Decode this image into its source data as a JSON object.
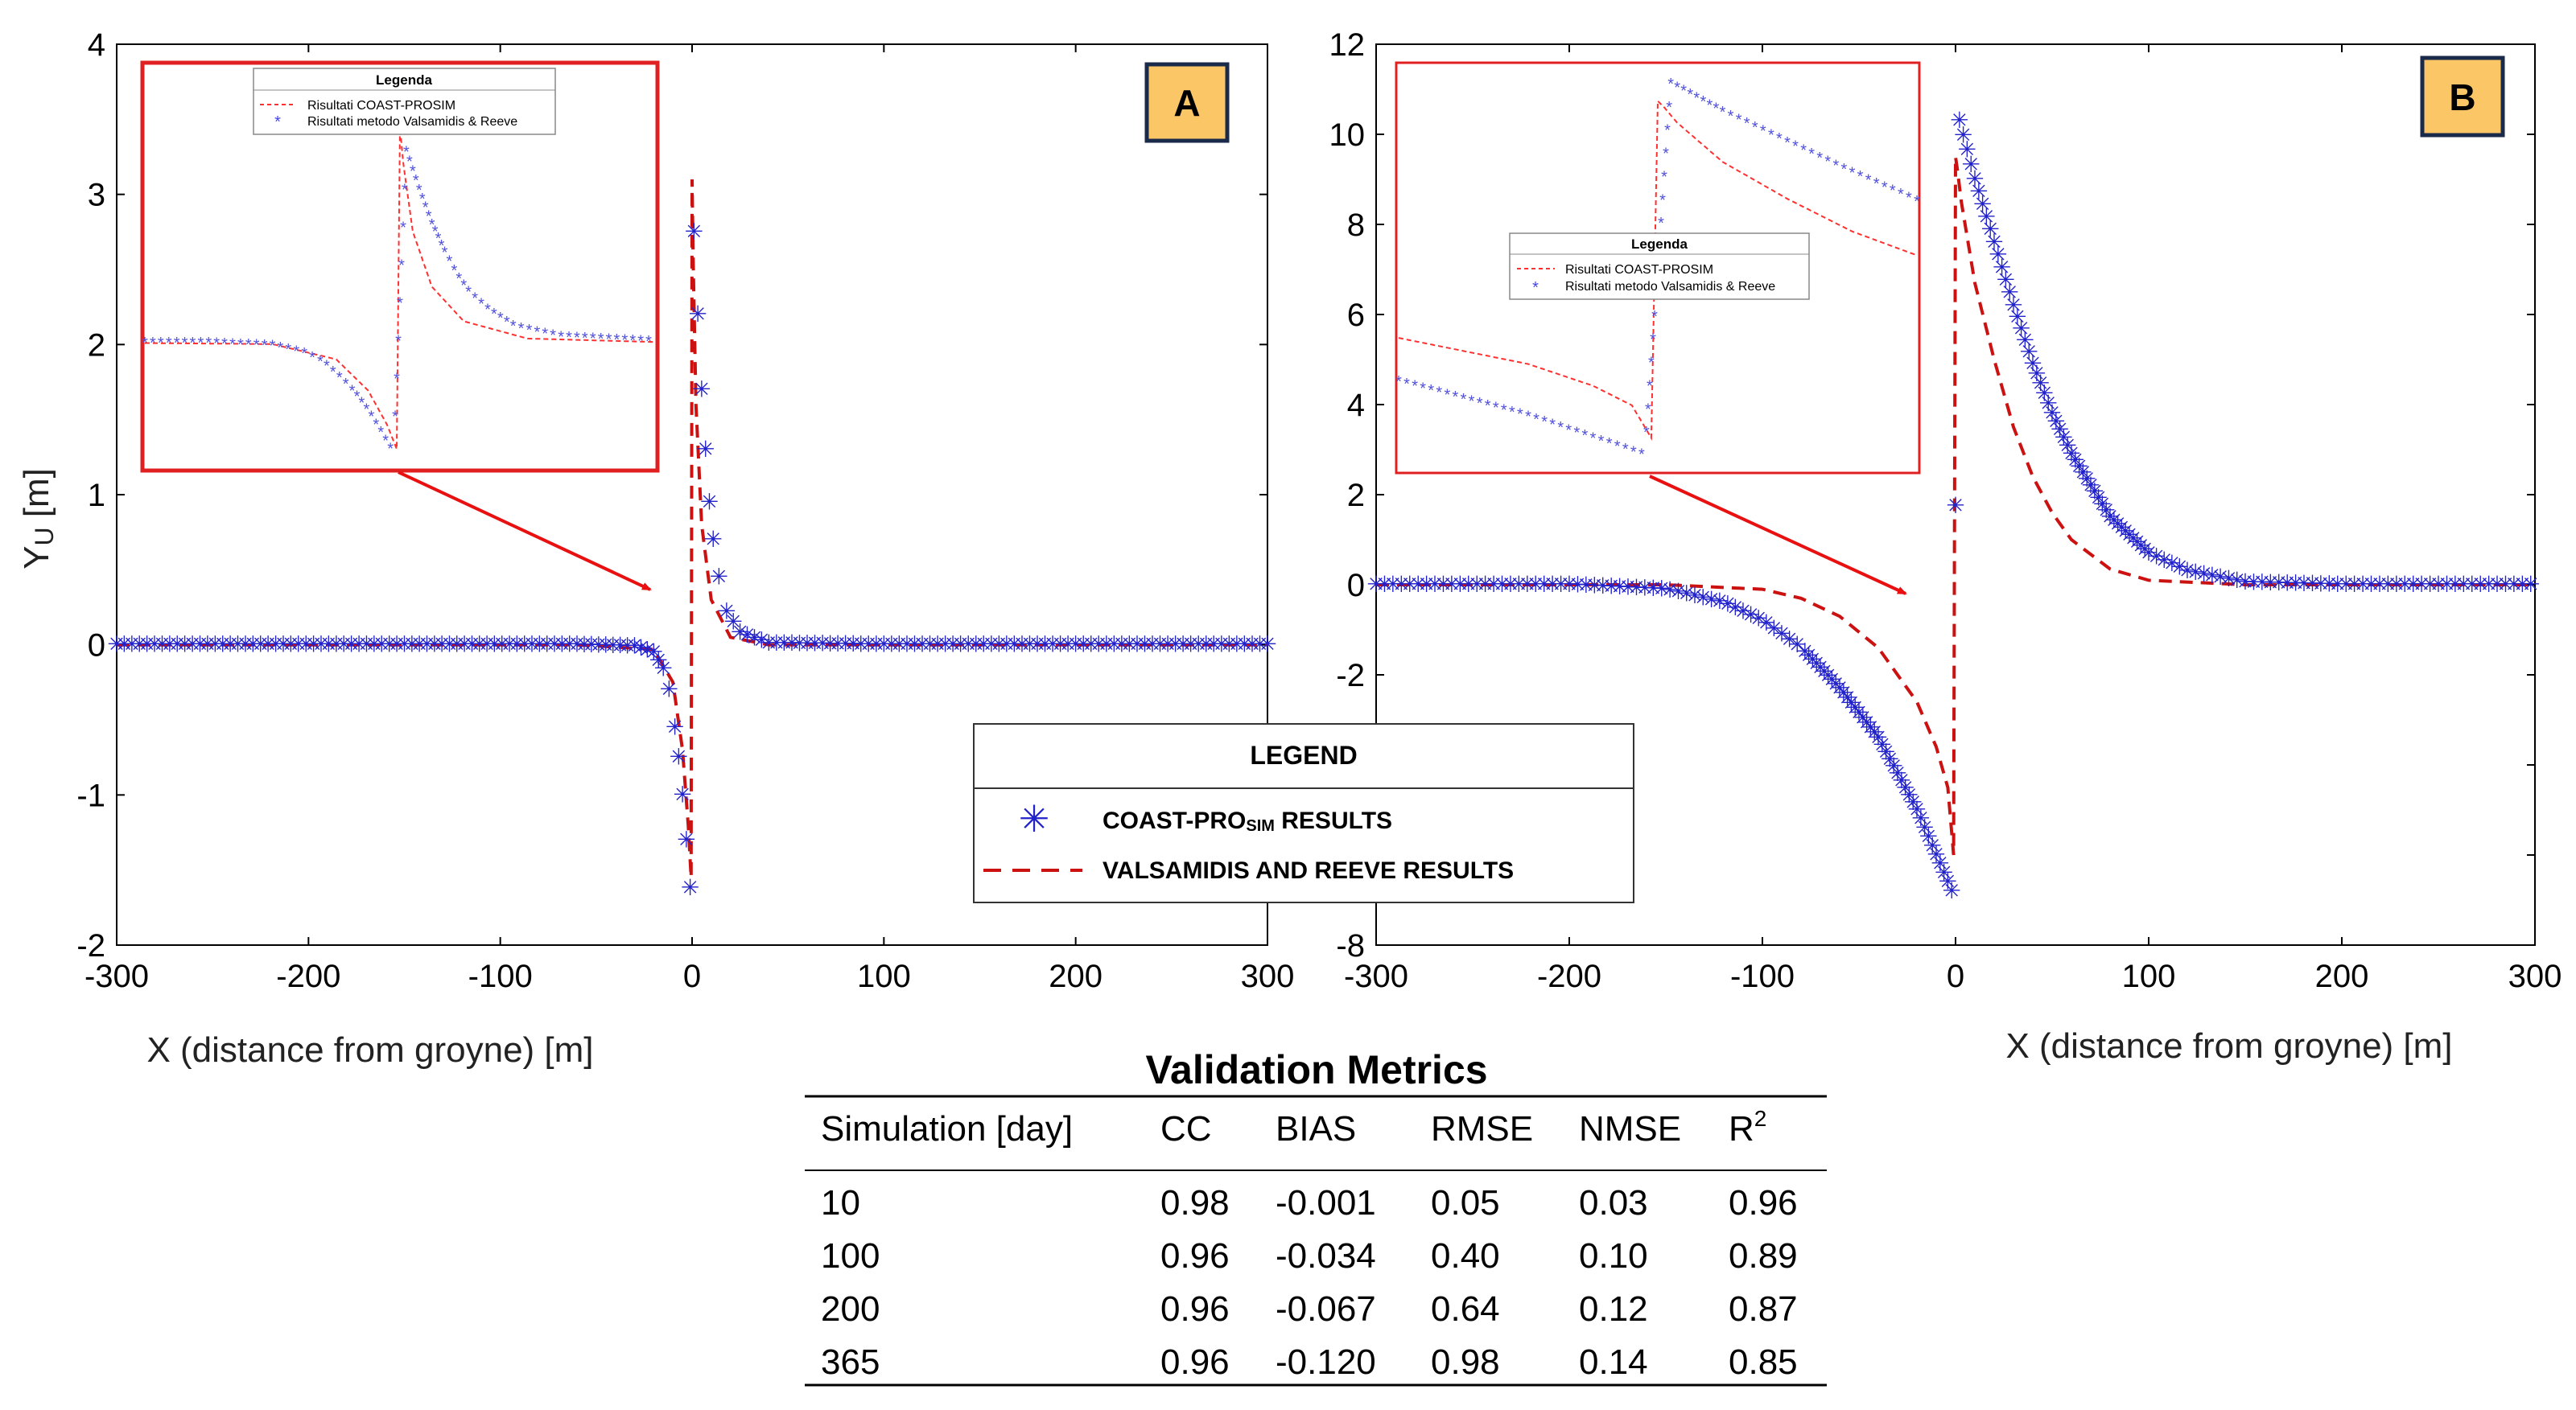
{
  "colors": {
    "series_marker": "#2222cc",
    "series_line": "#cc1111",
    "inset_border": "#e02020",
    "arrow": "#e81010",
    "badge_fill": "#fbc766",
    "badge_border": "#1a2a4a"
  },
  "panels": [
    {
      "letter": "A",
      "ylabel_main": "Y",
      "ylabel_sub": "U",
      "ylabel_rest": " [m]",
      "xlabel": "X (distance from groyne) [m]",
      "xticks": [
        "-300",
        "-200",
        "-100",
        "0",
        "100",
        "200",
        "300"
      ],
      "yticks": [
        "-2",
        "-1",
        "0",
        "1",
        "2",
        "3",
        "4"
      ],
      "inset_legend": {
        "title": "Legenda",
        "line_label": "Risultati COAST-PROSIM",
        "marker_label": "Risultati metodo Valsamidis & Reeve"
      }
    },
    {
      "letter": "B",
      "ylabel_main": "",
      "ylabel_sub": "",
      "ylabel_rest": "",
      "xlabel": "X (distance from groyne) [m]",
      "xticks": [
        "-300",
        "-200",
        "-100",
        "0",
        "100",
        "200",
        "300"
      ],
      "yticks": [
        "-8",
        "-6",
        "-4",
        "-2",
        "0",
        "2",
        "4",
        "6",
        "8",
        "10",
        "12"
      ],
      "inset_legend": {
        "title": "Legenda",
        "line_label": "Risultati COAST-PROSIM",
        "marker_label": "Risultati metodo Valsamidis & Reeve"
      }
    }
  ],
  "legend": {
    "title": "LEGEND",
    "marker_label_main": "COAST-PRO",
    "marker_label_sub": "SIM",
    "marker_label_rest": " RESULTS",
    "line_label": "VALSAMIDIS AND REEVE RESULTS"
  },
  "metrics": {
    "title": "Validation Metrics",
    "headers": [
      "Simulation [day]",
      "CC",
      "BIAS",
      "RMSE",
      "NMSE",
      "R"
    ],
    "r2_sup": "2",
    "rows": [
      [
        "10",
        "0.98",
        "-0.001",
        "0.05",
        "0.03",
        "0.96"
      ],
      [
        "100",
        "0.96",
        "-0.034",
        "0.40",
        "0.10",
        "0.89"
      ],
      [
        "200",
        "0.96",
        "-0.067",
        "0.64",
        "0.12",
        "0.87"
      ],
      [
        "365",
        "0.96",
        "-0.120",
        "0.98",
        "0.14",
        "0.85"
      ]
    ]
  },
  "chart_data": [
    {
      "type": "line",
      "panel": "A",
      "xlabel": "X (distance from groyne) [m]",
      "ylabel": "YU [m]",
      "xlim": [
        -300,
        300
      ],
      "ylim": [
        -2,
        4
      ],
      "series": [
        {
          "name": "COAST-PROSIM RESULTS",
          "style": "marker",
          "x": [
            -300,
            -150,
            -60,
            -30,
            -20,
            -15,
            -12,
            -9,
            -7,
            -5,
            -3,
            -1,
            1,
            3,
            5,
            7,
            9,
            11,
            14,
            18,
            25,
            40,
            100,
            300
          ],
          "y": [
            0,
            0,
            0,
            -0.01,
            -0.05,
            -0.16,
            -0.3,
            -0.55,
            -0.75,
            -1.0,
            -1.3,
            -1.62,
            2.75,
            2.2,
            1.7,
            1.3,
            0.95,
            0.7,
            0.45,
            0.22,
            0.08,
            0.01,
            0,
            0
          ]
        },
        {
          "name": "VALSAMIDIS AND REEVE RESULTS",
          "style": "dashed",
          "x": [
            -300,
            -60,
            -20,
            -10,
            -5,
            -2,
            -0.5,
            0,
            0.5,
            2,
            5,
            10,
            20,
            40,
            300
          ],
          "y": [
            0,
            0,
            -0.03,
            -0.25,
            -0.7,
            -1.2,
            -1.55,
            3.1,
            2.6,
            1.6,
            0.8,
            0.3,
            0.05,
            0,
            0
          ]
        }
      ]
    },
    {
      "type": "line",
      "panel": "B",
      "xlabel": "X (distance from groyne) [m]",
      "ylabel": "",
      "xlim": [
        -300,
        300
      ],
      "ylim": [
        -8,
        12
      ],
      "series": [
        {
          "name": "COAST-PROSIM RESULTS",
          "style": "marker",
          "x": [
            -300,
            -200,
            -150,
            -120,
            -100,
            -80,
            -60,
            -40,
            -20,
            -10,
            -2,
            2,
            10,
            20,
            30,
            40,
            50,
            60,
            80,
            100,
            120,
            150,
            200,
            300
          ],
          "y": [
            0,
            0,
            -0.1,
            -0.4,
            -0.8,
            -1.4,
            -2.3,
            -3.4,
            -5.0,
            -6.0,
            -6.8,
            10.3,
            9.0,
            7.6,
            6.2,
            4.9,
            3.8,
            2.9,
            1.5,
            0.7,
            0.3,
            0.05,
            0,
            0
          ]
        },
        {
          "name": "VALSAMIDIS AND REEVE RESULTS",
          "style": "dashed",
          "x": [
            -300,
            -150,
            -100,
            -80,
            -60,
            -40,
            -20,
            -10,
            -4,
            -1,
            0,
            1,
            3,
            10,
            20,
            30,
            40,
            50,
            60,
            80,
            100,
            150,
            300
          ],
          "y": [
            0,
            0,
            -0.1,
            -0.3,
            -0.7,
            -1.4,
            -2.6,
            -3.6,
            -4.5,
            -6.0,
            9.5,
            9.2,
            8.5,
            6.7,
            5.0,
            3.5,
            2.4,
            1.6,
            1.0,
            0.35,
            0.1,
            0,
            0
          ]
        }
      ]
    }
  ]
}
